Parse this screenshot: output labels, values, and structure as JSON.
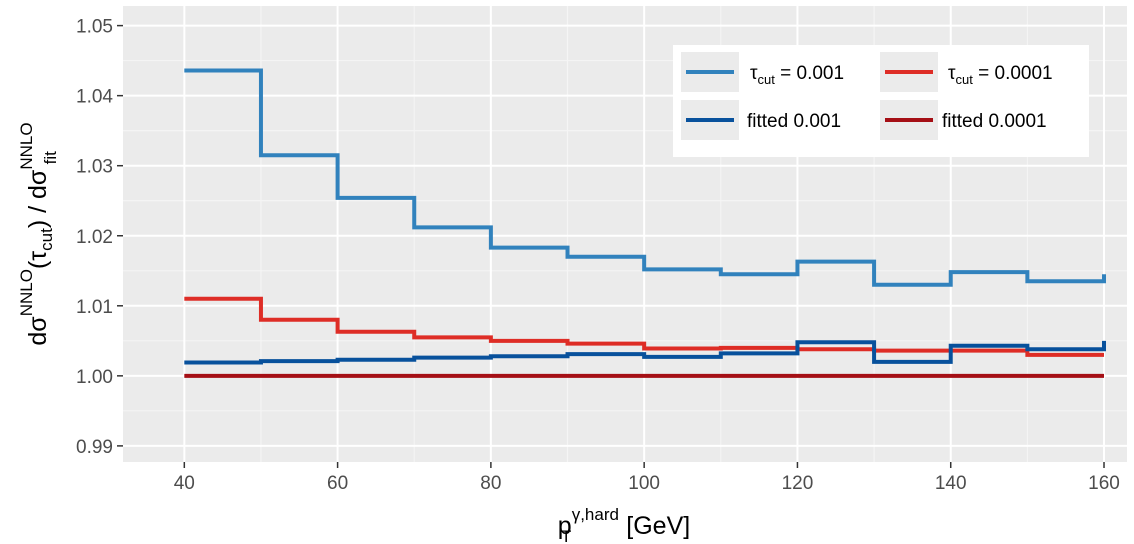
{
  "chart_data": {
    "type": "line",
    "step": true,
    "xlabel": {
      "main": "p",
      "sub": "T",
      "sup": "γ,hard",
      "tail": " [GeV]"
    },
    "ylabel": {
      "d1": "dσ",
      "sup1": "NNLO",
      "open": "(",
      "tau": "τ",
      "tausub": "cut",
      "close": ")",
      "slash": " / ",
      "d2": "dσ",
      "sup2": "NNLO",
      "sub2": "fit"
    },
    "xlim": [
      32,
      163
    ],
    "ylim": [
      0.9877,
      1.0528
    ],
    "x_ticks": [
      40,
      60,
      80,
      100,
      120,
      140,
      160
    ],
    "y_ticks": [
      0.99,
      1.0,
      1.01,
      1.02,
      1.03,
      1.04,
      1.05
    ],
    "y_tick_labels": [
      "0.99",
      "1.00",
      "1.01",
      "1.02",
      "1.03",
      "1.04",
      "1.05"
    ],
    "x_tick_labels": [
      "40",
      "60",
      "80",
      "100",
      "120",
      "140",
      "160"
    ],
    "grid": true,
    "legend_position": "top-right",
    "bin_edges": [
      40,
      50,
      60,
      70,
      80,
      90,
      100,
      110,
      120,
      130,
      140,
      150,
      160
    ],
    "series": [
      {
        "name": "τ_cut = 0.001",
        "label_main": "τ",
        "label_sub": "cut",
        "label_tail": " = 0.001",
        "color": "#3182bd",
        "values": [
          1.0436,
          1.0315,
          1.0254,
          1.0212,
          1.0183,
          1.017,
          1.0152,
          1.0145,
          1.0163,
          1.013,
          1.0148,
          1.0135
        ],
        "end_value": 1.0145
      },
      {
        "name": "τ_cut = 0.0001",
        "label_main": "τ",
        "label_sub": "cut",
        "label_tail": " = 0.0001",
        "color": "#de2d26",
        "values": [
          1.011,
          1.008,
          1.0063,
          1.0055,
          1.005,
          1.0046,
          1.0039,
          1.004,
          1.0038,
          1.0036,
          1.0036,
          1.003
        ],
        "end_value": 1.003
      },
      {
        "name": "fitted 0.001",
        "label_main": "fitted 0.001",
        "label_sub": "",
        "label_tail": "",
        "color": "#08519c",
        "values": [
          1.0019,
          1.0021,
          1.0023,
          1.0026,
          1.0028,
          1.0031,
          1.0027,
          1.0032,
          1.0048,
          1.002,
          1.0043,
          1.0038
        ],
        "end_value": 1.005
      },
      {
        "name": "fitted 0.0001",
        "label_main": "fitted 0.0001",
        "label_sub": "",
        "label_tail": "",
        "color": "#a50f15",
        "values": [
          1.0,
          1.0,
          1.0,
          1.0,
          1.0,
          1.0,
          1.0,
          1.0,
          1.0,
          1.0,
          1.0,
          1.0
        ],
        "end_value": 1.0
      }
    ],
    "legend_order": [
      0,
      1,
      2,
      3
    ],
    "colors": {
      "panel": "#ebebeb",
      "grid_major": "#ffffff",
      "grid_minor": "#f5f5f5",
      "tick_text": "#4d4d4d",
      "tick_mark": "#333333"
    }
  }
}
